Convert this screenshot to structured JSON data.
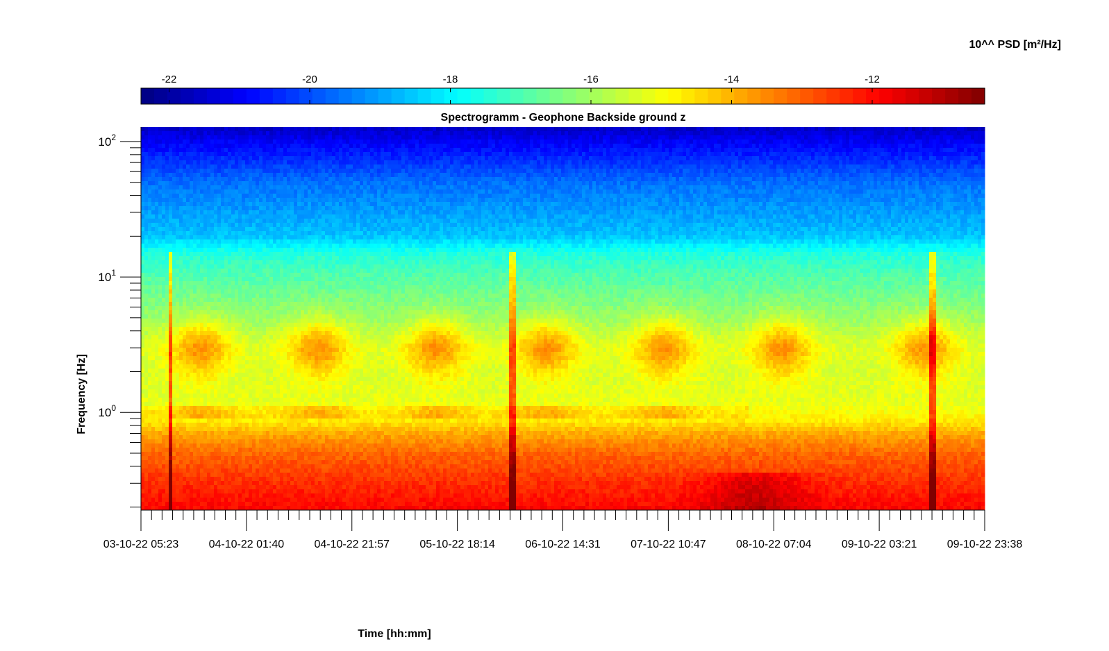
{
  "chart_data": {
    "type": "heatmap",
    "title": "Spectrogramm - Geophone Backside ground z",
    "xlabel": "Time [hh:mm]",
    "ylabel": "Frequency [Hz]",
    "colorbar_label": "10^^ PSD [m²/Hz]",
    "colorbar": {
      "location": "top",
      "range": [
        -22.4,
        -10.4
      ],
      "ticks": [
        -22,
        -20,
        -18,
        -16,
        -14,
        -12
      ],
      "tick_labels": [
        "-22",
        "-20",
        "-18",
        "-16",
        "-14",
        "-12"
      ],
      "colormap": "jet"
    },
    "x_ticks": [
      "03-10-22 05:23",
      "04-10-22 01:40",
      "04-10-22 21:57",
      "05-10-22 18:14",
      "06-10-22 14:31",
      "07-10-22 10:47",
      "08-10-22 07:04",
      "09-10-22 03:21",
      "09-10-22 23:38"
    ],
    "x_minor_per_major": 10,
    "y_scale": "log",
    "y_range": [
      0.19,
      128
    ],
    "y_major_ticks": [
      1,
      10,
      100
    ],
    "y_tick_labels": [
      {
        "base": "10",
        "exp": "0"
      },
      {
        "base": "10",
        "exp": "1"
      },
      {
        "base": "10",
        "exp": "2"
      }
    ],
    "psd_model": {
      "profile": [
        {
          "f": 0.19,
          "v": -11.9
        },
        {
          "f": 0.3,
          "v": -12.4
        },
        {
          "f": 0.5,
          "v": -13.1
        },
        {
          "f": 0.7,
          "v": -13.9
        },
        {
          "f": 0.9,
          "v": -14.8
        },
        {
          "f": 1.2,
          "v": -15.2
        },
        {
          "f": 2.0,
          "v": -15.4
        },
        {
          "f": 3.0,
          "v": -15.3
        },
        {
          "f": 5.0,
          "v": -16.1
        },
        {
          "f": 10.0,
          "v": -16.9
        },
        {
          "f": 15.0,
          "v": -17.5
        },
        {
          "f": 20.0,
          "v": -18.6
        },
        {
          "f": 50.0,
          "v": -19.6
        },
        {
          "f": 100.0,
          "v": -21.0
        },
        {
          "f": 128.0,
          "v": -21.6
        }
      ],
      "day_activity_centers": [
        0.07,
        0.21,
        0.35,
        0.48,
        0.62,
        0.76,
        0.93
      ],
      "spike_positions": [
        0.035,
        0.44,
        0.94
      ]
    }
  }
}
